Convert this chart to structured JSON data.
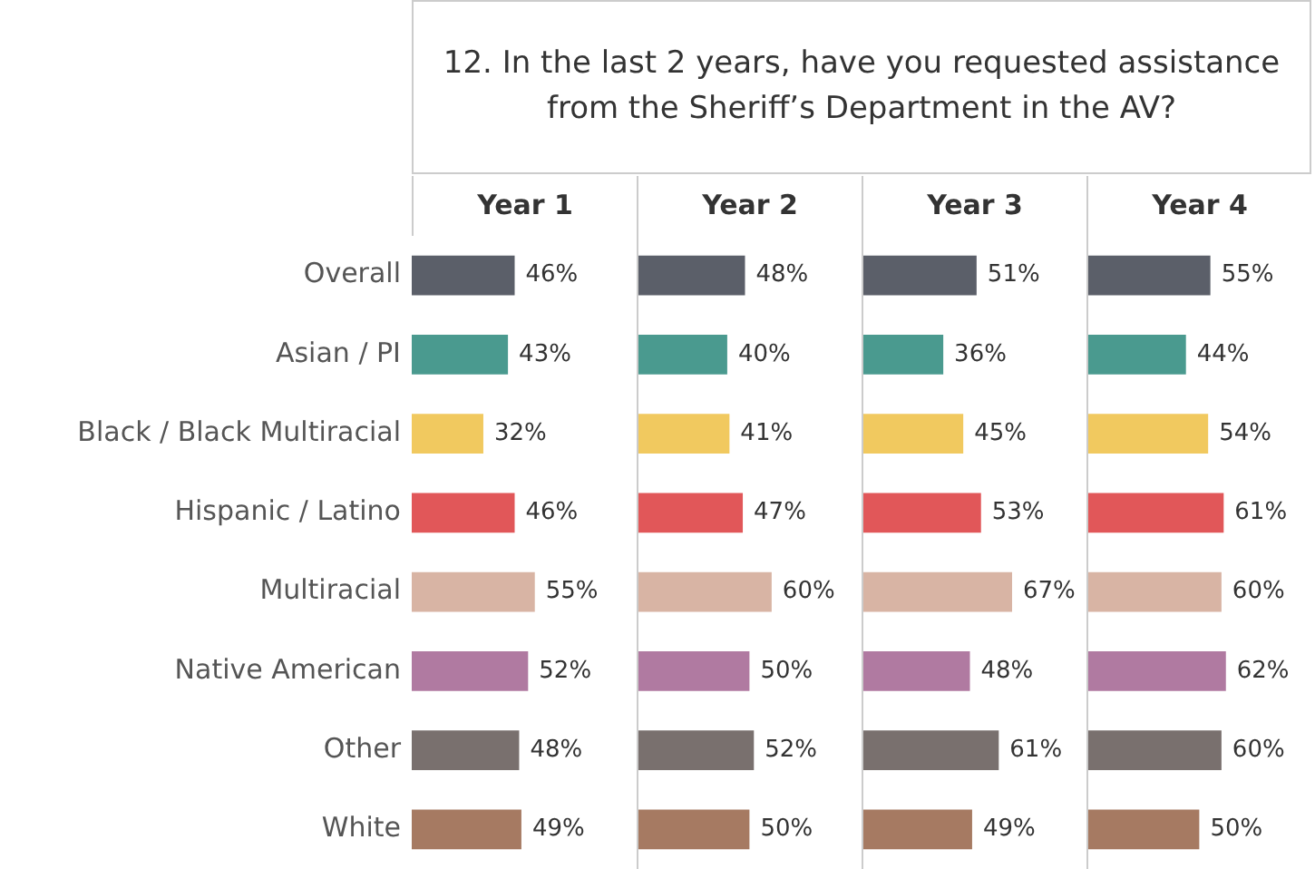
{
  "chart_data": [
    {
      "type": "other",
      "title": "12. In the last 2 years, have you requested assistance from the Sheriff’s Department in the AV?"
    },
    {
      "type": "bar",
      "title": "Year 1",
      "orientation": "horizontal",
      "tick_labels": "y",
      "categories": [
        "Overall",
        "Asian / PI",
        "Black / Black Multiracial",
        "Hispanic / Latino",
        "Multiracial",
        "Native American",
        "Other",
        "White"
      ],
      "values": [
        46,
        43,
        32,
        46,
        55,
        52,
        48,
        49
      ],
      "value_labels": [
        "46%",
        "43%",
        "32%",
        "46%",
        "55%",
        "52%",
        "48%",
        "49%"
      ],
      "colors": [
        "#5b5f69",
        "#4a9a8f",
        "#f1c95f",
        "#e15759",
        "#d8b4a4",
        "#b07aa1",
        "#79706e",
        "#a67a62"
      ]
    },
    {
      "type": "bar",
      "title": "Year 2",
      "orientation": "horizontal",
      "tick_labels": false,
      "categories": [
        null,
        null,
        null,
        null,
        null,
        null,
        null,
        null
      ],
      "values": [
        48,
        40,
        41,
        47,
        60,
        50,
        52,
        50
      ],
      "value_labels": [
        "48%",
        "40%",
        "41%",
        "47%",
        "60%",
        "50%",
        "52%",
        "50%"
      ],
      "colors": [
        "#5b5f69",
        "#4a9a8f",
        "#f1c95f",
        "#e15759",
        "#d8b4a4",
        "#b07aa1",
        "#79706e",
        "#a67a62"
      ]
    },
    {
      "type": "bar",
      "title": "Year 3",
      "orientation": "horizontal",
      "tick_labels": false,
      "categories": [
        null,
        null,
        null,
        null,
        null,
        null,
        null,
        null
      ],
      "values": [
        51,
        36,
        45,
        53,
        67,
        48,
        61,
        49
      ],
      "value_labels": [
        "51%",
        "36%",
        "45%",
        "53%",
        "67%",
        "48%",
        "61%",
        "49%"
      ],
      "colors": [
        "#5b5f69",
        "#4a9a8f",
        "#f1c95f",
        "#e15759",
        "#d8b4a4",
        "#b07aa1",
        "#79706e",
        "#a67a62"
      ]
    },
    {
      "type": "bar",
      "title": "Year 4",
      "orientation": "horizontal",
      "tick_labels": false,
      "categories": [
        null,
        null,
        null,
        null,
        null,
        null,
        null,
        null
      ],
      "values": [
        55,
        44,
        54,
        61,
        60,
        62,
        60,
        50
      ],
      "value_labels": [
        "55%",
        "44%",
        "54%",
        "61%",
        "60%",
        "62%",
        "60%",
        "50%"
      ],
      "colors": [
        "#5b5f69",
        "#4a9a8f",
        "#f1c95f",
        "#e15759",
        "#d8b4a4",
        "#b07aa1",
        "#79706e",
        "#a67a62"
      ]
    }
  ]
}
